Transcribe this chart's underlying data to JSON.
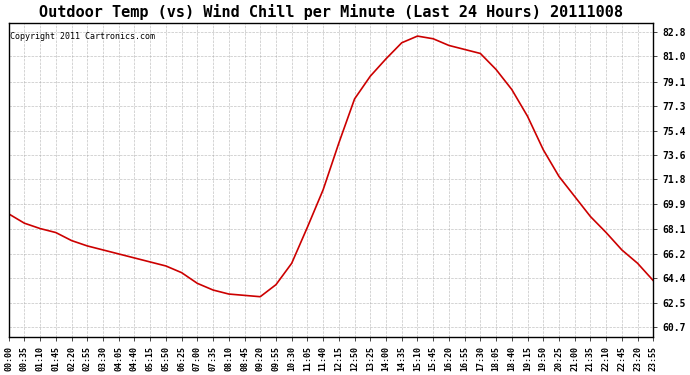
{
  "title": "Outdoor Temp (vs) Wind Chill per Minute (Last 24 Hours) 20111008",
  "copyright_text": "Copyright 2011 Cartronics.com",
  "line_color": "#cc0000",
  "background_color": "#ffffff",
  "plot_background": "#ffffff",
  "grid_color": "#aaaaaa",
  "y_ticks": [
    60.7,
    62.5,
    64.4,
    66.2,
    68.1,
    69.9,
    71.8,
    73.6,
    75.4,
    77.3,
    79.1,
    81.0,
    82.8
  ],
  "ylim_min": 60.0,
  "ylim_max": 83.5,
  "x_labels": [
    "00:00",
    "00:35",
    "01:10",
    "01:45",
    "02:20",
    "02:55",
    "03:30",
    "04:05",
    "04:40",
    "05:15",
    "05:50",
    "06:25",
    "07:00",
    "07:35",
    "08:10",
    "08:45",
    "09:20",
    "09:55",
    "10:30",
    "11:05",
    "11:40",
    "12:15",
    "12:50",
    "13:25",
    "14:00",
    "14:35",
    "15:10",
    "15:45",
    "16:20",
    "16:55",
    "17:30",
    "18:05",
    "18:40",
    "19:15",
    "19:50",
    "20:25",
    "21:00",
    "21:35",
    "22:10",
    "22:45",
    "23:20",
    "23:55"
  ],
  "curve_points_x": [
    0,
    35,
    70,
    105,
    140,
    175,
    210,
    245,
    280,
    315,
    350,
    385,
    420,
    455,
    490,
    525,
    560,
    595,
    630,
    665,
    700,
    735,
    770,
    805,
    840,
    875,
    910,
    945,
    980,
    1015,
    1050,
    1085,
    1120,
    1155,
    1190,
    1225,
    1260,
    1295,
    1330,
    1365,
    1400,
    1435
  ],
  "curve_points_y": [
    69.2,
    68.5,
    68.1,
    67.8,
    67.2,
    66.8,
    66.5,
    66.2,
    65.9,
    65.6,
    65.3,
    64.8,
    64.0,
    63.5,
    63.2,
    63.1,
    63.0,
    63.9,
    65.5,
    68.2,
    71.0,
    74.5,
    77.8,
    79.5,
    80.8,
    82.0,
    82.5,
    82.3,
    81.8,
    81.5,
    81.2,
    80.0,
    78.5,
    76.5,
    74.0,
    72.0,
    70.5,
    69.0,
    67.8,
    66.5,
    65.5,
    64.2
  ]
}
